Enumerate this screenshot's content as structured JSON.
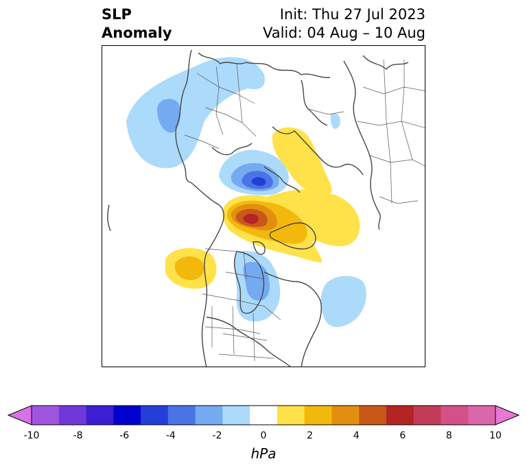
{
  "title": {
    "left_line1": "SLP",
    "left_line2": "Anomaly",
    "init": "Init: Thu 27 Jul 2023",
    "valid": "Valid: 04 Aug – 10 Aug"
  },
  "colorbar": {
    "unit_label": "hPa",
    "ticks": [
      "-10",
      "-8",
      "-6",
      "-4",
      "-2",
      "0",
      "2",
      "4",
      "6",
      "8",
      "10"
    ],
    "colors": [
      "#d771e6",
      "#a055e0",
      "#7038d8",
      "#3c1ed4",
      "#0000cc",
      "#243ed8",
      "#4a74e6",
      "#74aaf0",
      "#acdafb",
      "#ffffff",
      "#ffe14a",
      "#f3b80c",
      "#e28f10",
      "#c85818",
      "#b42424",
      "#c23c58",
      "#d45088",
      "#dc66ac",
      "#e778d4"
    ],
    "extend": "both"
  },
  "map": {
    "projection": "north-polar-stereographic",
    "field": "sea-level-pressure anomaly"
  }
}
